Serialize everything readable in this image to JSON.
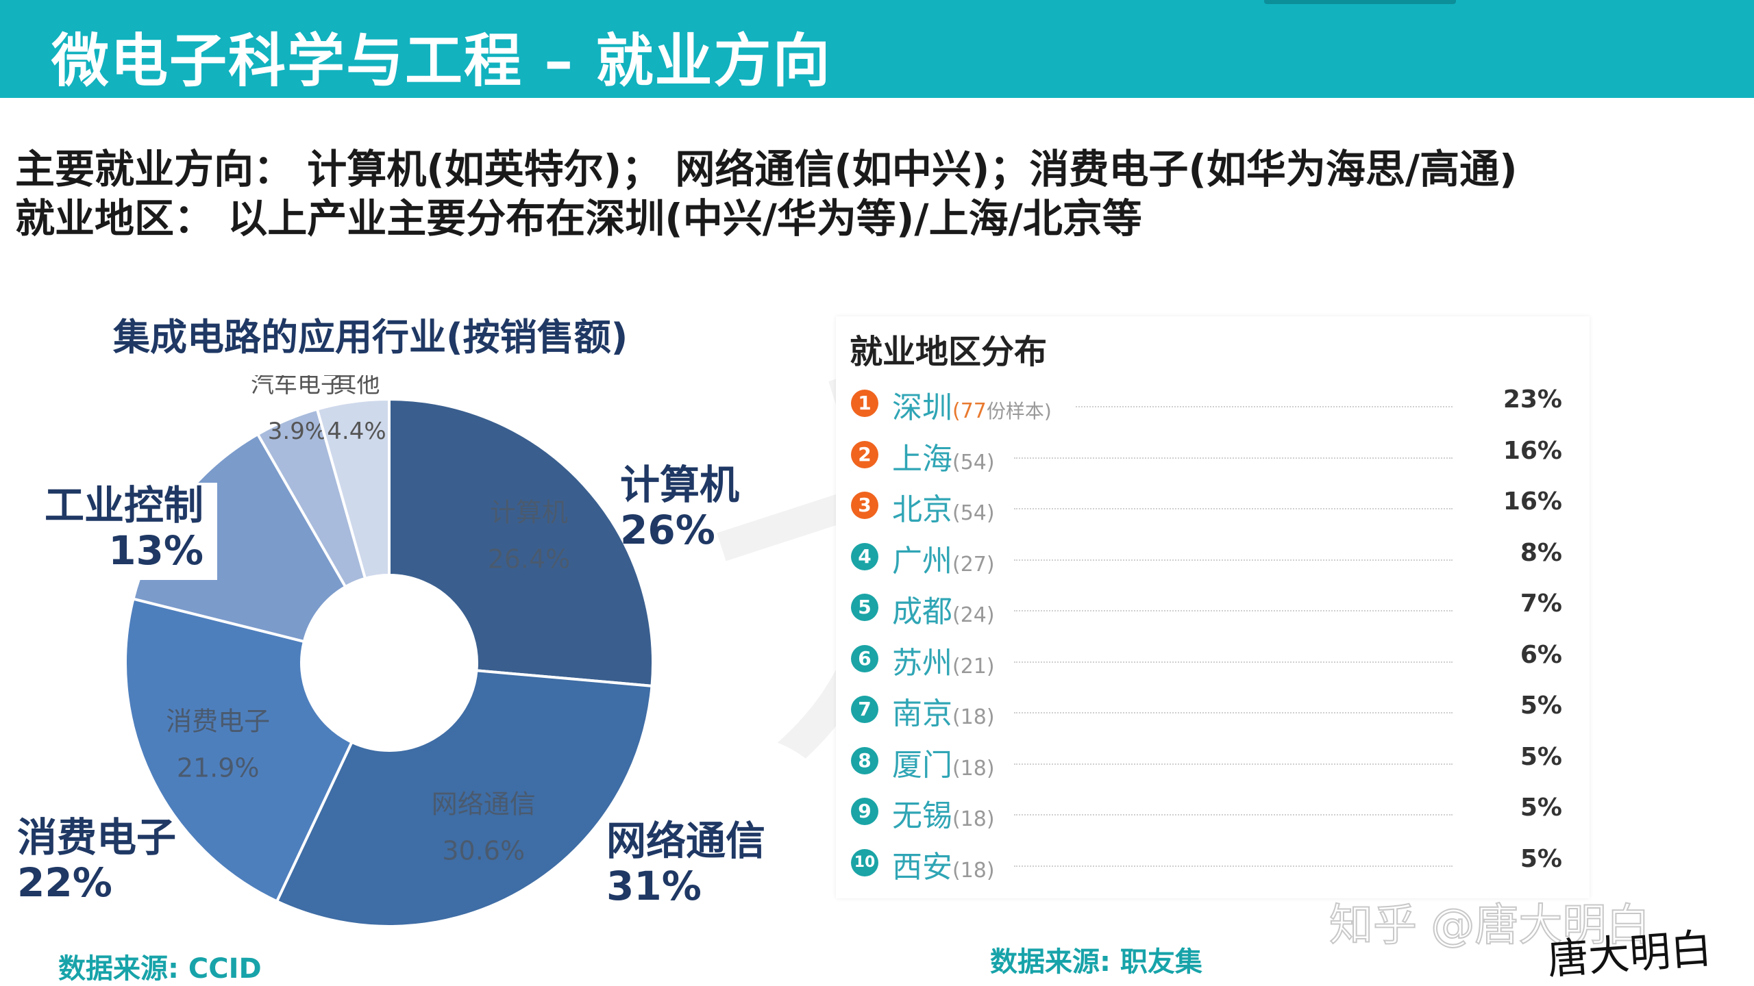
{
  "slide": {
    "title": "微电子科学与工程 – 就业方向",
    "line1": "主要就业方向： 计算机(如英特尔)； 网络通信(如中兴)；消费电子(如华为海思/高通)",
    "line2": "就业地区： 以上产业主要分布在深圳(中兴/华为等)/上海/北京等",
    "pie_title": "集成电路的应用行业(按销售额)",
    "pie_source": "数据来源: CCID",
    "region_source": "数据来源: 职友集",
    "credit": "知乎 @唐大明白",
    "signature": "唐大明白"
  },
  "callouts": {
    "computer": {
      "name": "计算机",
      "pct": "26%"
    },
    "network": {
      "name": "网络通信",
      "pct": "31%"
    },
    "consumer": {
      "name": "消费电子",
      "pct": "22%"
    },
    "industrial": {
      "name": "工业控制",
      "pct": "13%"
    }
  },
  "chart_data": [
    {
      "type": "pie",
      "title": "集成电路的应用行业(按销售额)",
      "donut": true,
      "labels": [
        "计算机",
        "网络通信",
        "消费电子",
        "工业控制",
        "汽车电子",
        "其他"
      ],
      "values": [
        26.4,
        30.6,
        21.9,
        12.8,
        3.9,
        4.4
      ],
      "value_labels": [
        "26.4%",
        "30.6%",
        "21.9%",
        "",
        "3.9%",
        "4.4%"
      ],
      "colors": [
        "#3a5f8f",
        "#3f6da5",
        "#4e7fbd",
        "#7b9bcb",
        "#a8bbdc",
        "#cfd9ec"
      ],
      "start_angle_deg": 0,
      "direction": "clockwise"
    },
    {
      "type": "table",
      "title": "就业地区分布",
      "columns": [
        "rank",
        "city",
        "samples",
        "share"
      ],
      "rows": [
        {
          "rank": "1",
          "city": "深圳",
          "count": "(77",
          "tag": "份样本)",
          "pct": "23%",
          "color": "#f0641e"
        },
        {
          "rank": "2",
          "city": "上海",
          "count": "(54)",
          "tag": "",
          "pct": "16%",
          "color": "#f0641e"
        },
        {
          "rank": "3",
          "city": "北京",
          "count": "(54)",
          "tag": "",
          "pct": "16%",
          "color": "#f0641e"
        },
        {
          "rank": "4",
          "city": "广州",
          "count": "(27)",
          "tag": "",
          "pct": "8%",
          "color": "#1aa4a6"
        },
        {
          "rank": "5",
          "city": "成都",
          "count": "(24)",
          "tag": "",
          "pct": "7%",
          "color": "#1aa4a6"
        },
        {
          "rank": "6",
          "city": "苏州",
          "count": "(21)",
          "tag": "",
          "pct": "6%",
          "color": "#1aa4a6"
        },
        {
          "rank": "7",
          "city": "南京",
          "count": "(18)",
          "tag": "",
          "pct": "5%",
          "color": "#1aa4a6"
        },
        {
          "rank": "8",
          "city": "厦门",
          "count": "(18)",
          "tag": "",
          "pct": "5%",
          "color": "#1aa4a6"
        },
        {
          "rank": "9",
          "city": "无锡",
          "count": "(18)",
          "tag": "",
          "pct": "5%",
          "color": "#1aa4a6"
        },
        {
          "rank": "10",
          "city": "西安",
          "count": "(18)",
          "tag": "",
          "pct": "5%",
          "color": "#1aa4a6"
        }
      ]
    }
  ]
}
